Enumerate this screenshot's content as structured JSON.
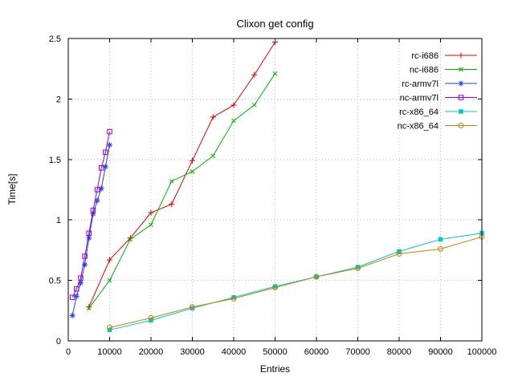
{
  "title": "Clixon get config",
  "chart_data": {
    "type": "line",
    "title": "Clixon get config",
    "xlabel": "Entries",
    "ylabel": "Time[s]",
    "xlim": [
      0,
      100000
    ],
    "ylim": [
      0,
      2.5
    ],
    "xticks": [
      0,
      10000,
      20000,
      30000,
      40000,
      50000,
      60000,
      70000,
      80000,
      90000,
      100000
    ],
    "xtick_labels": [
      "0",
      "10000",
      "20000",
      "30000",
      "40000",
      "50000",
      "60000",
      "70000",
      "80000",
      "90000",
      "100000"
    ],
    "yticks": [
      0,
      0.5,
      1,
      1.5,
      2,
      2.5
    ],
    "ytick_labels": [
      "0",
      "0.5",
      "1",
      "1.5",
      "2",
      "2.5"
    ],
    "grid": true,
    "legend_position": "top-right",
    "series": [
      {
        "name": "rc-i686",
        "color": "#e10000",
        "marker": "plus",
        "points": [
          [
            5000,
            0.28
          ],
          [
            10000,
            0.67
          ],
          [
            15000,
            0.85
          ],
          [
            20000,
            1.06
          ],
          [
            25000,
            1.13
          ],
          [
            30000,
            1.49
          ],
          [
            35000,
            1.85
          ],
          [
            40000,
            1.95
          ],
          [
            45000,
            2.2
          ],
          [
            50000,
            2.47
          ]
        ]
      },
      {
        "name": "nc-i686",
        "color": "#00b000",
        "marker": "cross",
        "points": [
          [
            5000,
            0.27
          ],
          [
            10000,
            0.5
          ],
          [
            15000,
            0.84
          ],
          [
            20000,
            0.96
          ],
          [
            25000,
            1.32
          ],
          [
            30000,
            1.4
          ],
          [
            35000,
            1.53
          ],
          [
            40000,
            1.82
          ],
          [
            45000,
            1.95
          ],
          [
            50000,
            2.21
          ]
        ]
      },
      {
        "name": "rc-armv7l",
        "color": "#2244dd",
        "marker": "asterisk",
        "points": [
          [
            1000,
            0.21
          ],
          [
            2000,
            0.37
          ],
          [
            3000,
            0.48
          ],
          [
            4000,
            0.63
          ],
          [
            5000,
            0.85
          ],
          [
            6000,
            1.05
          ],
          [
            7000,
            1.16
          ],
          [
            8000,
            1.26
          ],
          [
            9000,
            1.44
          ],
          [
            10000,
            1.62
          ]
        ]
      },
      {
        "name": "nc-armv7l",
        "color": "#9400d3",
        "marker": "square-open",
        "points": [
          [
            1000,
            0.36
          ],
          [
            2000,
            0.43
          ],
          [
            3000,
            0.52
          ],
          [
            4000,
            0.7
          ],
          [
            5000,
            0.89
          ],
          [
            6000,
            1.08
          ],
          [
            7000,
            1.25
          ],
          [
            8000,
            1.43
          ],
          [
            9000,
            1.56
          ],
          [
            10000,
            1.73
          ]
        ]
      },
      {
        "name": "rc-x86_64",
        "color": "#00c7c7",
        "marker": "square-filled",
        "points": [
          [
            10000,
            0.09
          ],
          [
            20000,
            0.17
          ],
          [
            30000,
            0.27
          ],
          [
            40000,
            0.36
          ],
          [
            50000,
            0.45
          ],
          [
            60000,
            0.53
          ],
          [
            70000,
            0.61
          ],
          [
            80000,
            0.74
          ],
          [
            90000,
            0.84
          ],
          [
            100000,
            0.89
          ]
        ]
      },
      {
        "name": "nc-x86_64",
        "color": "#b8860b",
        "marker": "circle-open",
        "points": [
          [
            10000,
            0.11
          ],
          [
            20000,
            0.19
          ],
          [
            30000,
            0.28
          ],
          [
            40000,
            0.35
          ],
          [
            50000,
            0.44
          ],
          [
            60000,
            0.53
          ],
          [
            70000,
            0.6
          ],
          [
            80000,
            0.72
          ],
          [
            90000,
            0.76
          ],
          [
            100000,
            0.86
          ]
        ]
      }
    ]
  }
}
